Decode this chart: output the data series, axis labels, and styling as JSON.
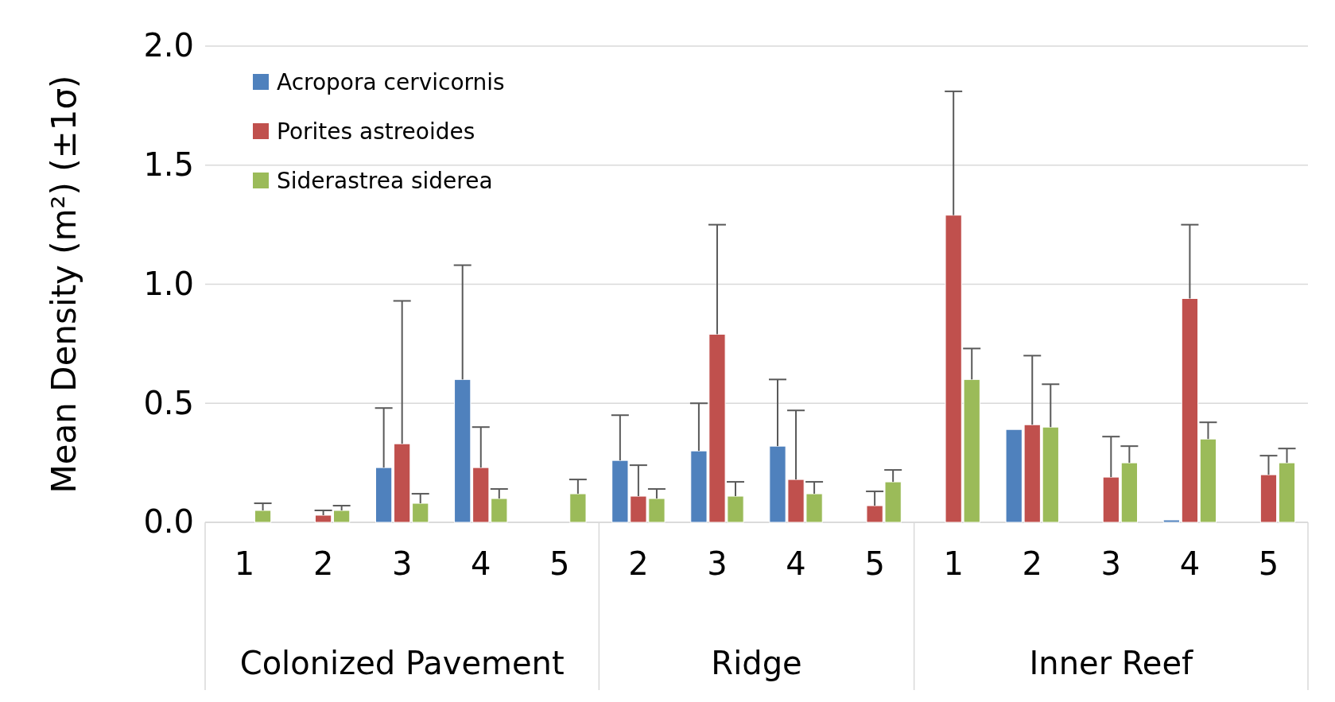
{
  "chart_data": {
    "type": "bar",
    "ylabel": "Mean Density (m²) (±1σ)",
    "categories": [
      "1",
      "2",
      "3",
      "4",
      "5",
      "2",
      "3",
      "4",
      "5",
      "1",
      "2",
      "3",
      "4",
      "5"
    ],
    "annotations": [
      "Colonized Pavement",
      "Ridge",
      "Inner Reef"
    ],
    "series": [
      {
        "name": "Acropora cervicornis",
        "color": "#4f81bd",
        "values": [
          null,
          null,
          0.23,
          0.6,
          null,
          0.26,
          0.3,
          0.32,
          null,
          null,
          0.39,
          null,
          0.01,
          null
        ],
        "errors": [
          null,
          null,
          [
            0.23,
            0.48
          ],
          [
            0.6,
            1.08
          ],
          null,
          [
            0.26,
            0.45
          ],
          [
            0.3,
            0.5
          ],
          [
            0.32,
            0.6
          ],
          null,
          null,
          null,
          null,
          null,
          null
        ]
      },
      {
        "name": "Porites astreoides",
        "color": "#c0504d",
        "values": [
          null,
          0.03,
          0.33,
          0.23,
          null,
          0.11,
          0.79,
          0.18,
          0.07,
          1.29,
          0.41,
          0.19,
          0.94,
          0.2
        ],
        "errors": [
          null,
          [
            0.03,
            0.05
          ],
          [
            0.33,
            0.93
          ],
          [
            0.23,
            0.4
          ],
          null,
          [
            0.11,
            0.24
          ],
          [
            0.79,
            1.25
          ],
          [
            0.18,
            0.47
          ],
          [
            0.07,
            0.13
          ],
          [
            1.29,
            1.81
          ],
          [
            0.41,
            0.7
          ],
          [
            0.19,
            0.36
          ],
          [
            0.94,
            1.25
          ],
          [
            0.2,
            0.28
          ]
        ]
      },
      {
        "name": "Siderastrea siderea",
        "color": "#9bbb59",
        "values": [
          0.05,
          0.05,
          0.08,
          0.1,
          0.12,
          0.1,
          0.11,
          0.12,
          0.17,
          0.6,
          0.4,
          0.25,
          0.35,
          0.25
        ],
        "errors": [
          [
            0.05,
            0.08
          ],
          [
            0.05,
            0.07
          ],
          [
            0.08,
            0.12
          ],
          [
            0.1,
            0.14
          ],
          [
            0.12,
            0.18
          ],
          [
            0.1,
            0.14
          ],
          [
            0.11,
            0.17
          ],
          [
            0.12,
            0.17
          ],
          [
            0.17,
            0.22
          ],
          [
            0.6,
            0.73
          ],
          [
            0.4,
            0.58
          ],
          [
            0.25,
            0.32
          ],
          [
            0.35,
            0.42
          ],
          [
            0.25,
            0.31
          ]
        ]
      }
    ],
    "ylim": [
      0,
      2
    ],
    "yticks": [
      {
        "value": 0,
        "label": "0.0"
      },
      {
        "value": 0.5,
        "label": "0.5"
      },
      {
        "value": 1,
        "label": "1.0"
      },
      {
        "value": 1.5,
        "label": "1.5"
      },
      {
        "value": 2,
        "label": "2.0"
      }
    ],
    "grid": "y",
    "legend": "top left"
  }
}
